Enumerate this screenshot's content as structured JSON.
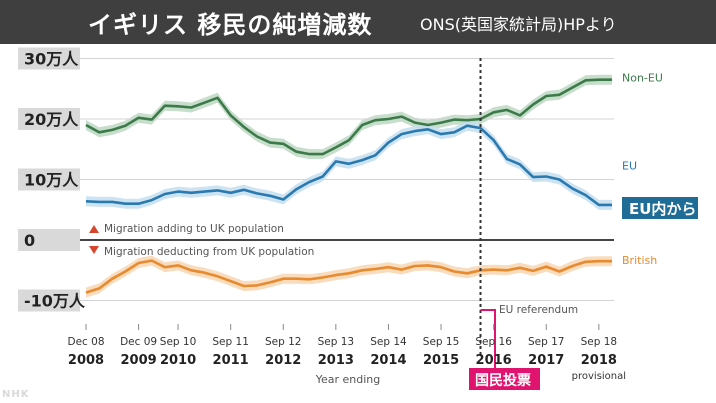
{
  "header": {
    "title": "イギリス  移民の純増減数",
    "source": "ONS(英国家統計局)HPより"
  },
  "watermark": "NHK",
  "chart_data": {
    "type": "line",
    "title": "イギリス  移民の純増減数",
    "xlabel": "Year ending",
    "ylabel": "",
    "ylim": [
      -13,
      33
    ],
    "grid": true,
    "x": [
      2008.0,
      2008.25,
      2008.5,
      2008.75,
      2009.0,
      2009.25,
      2009.5,
      2009.75,
      2010.0,
      2010.25,
      2010.5,
      2010.75,
      2011.0,
      2011.25,
      2011.5,
      2011.75,
      2012.0,
      2012.25,
      2012.5,
      2012.75,
      2013.0,
      2013.25,
      2013.5,
      2013.75,
      2014.0,
      2014.25,
      2014.5,
      2014.75,
      2015.0,
      2015.25,
      2015.5,
      2015.75,
      2016.0,
      2016.25,
      2016.5,
      2016.75,
      2017.0,
      2017.25,
      2017.5,
      2017.75,
      2018.0
    ],
    "y_ticks": [
      {
        "value": 30,
        "label": "30万人"
      },
      {
        "value": 20,
        "label": "20万人"
      },
      {
        "value": 10,
        "label": "10万人"
      },
      {
        "value": 0,
        "label": "0"
      },
      {
        "value": -10,
        "label": "-10万人"
      }
    ],
    "x_ticks": [
      {
        "value": 2008.0,
        "month": "Dec 08",
        "year": "2008"
      },
      {
        "value": 2009.0,
        "month": "Dec 09",
        "year": "2009"
      },
      {
        "value": 2009.75,
        "month": "Sep 10",
        "year": "2010"
      },
      {
        "value": 2010.75,
        "month": "Sep 11",
        "year": "2011"
      },
      {
        "value": 2011.75,
        "month": "Sep 12",
        "year": "2012"
      },
      {
        "value": 2012.75,
        "month": "Sep 13",
        "year": "2013"
      },
      {
        "value": 2013.75,
        "month": "Sep 14",
        "year": "2014"
      },
      {
        "value": 2014.75,
        "month": "Sep 15",
        "year": "2015"
      },
      {
        "value": 2015.75,
        "month": "Sep 16",
        "year": "2016"
      },
      {
        "value": 2016.75,
        "month": "Sep 17",
        "year": "2017"
      },
      {
        "value": 2017.75,
        "month": "Sep 18",
        "year": "2018",
        "note": "provisional"
      }
    ],
    "series": [
      {
        "name": "Non-EU",
        "color": "#3d7a4a",
        "band": "#bcd8c2",
        "values": [
          19.0,
          17.8,
          18.2,
          18.9,
          20.2,
          19.9,
          22.2,
          22.1,
          21.9,
          22.7,
          23.5,
          20.6,
          18.7,
          17.1,
          16.1,
          15.9,
          14.6,
          14.2,
          14.2,
          15.3,
          16.5,
          19.0,
          19.8,
          20.0,
          20.4,
          19.4,
          19.0,
          19.4,
          19.9,
          19.8,
          20.0,
          21.1,
          21.5,
          20.6,
          22.4,
          23.8,
          24.0,
          25.2,
          26.4,
          26.5,
          26.5
        ]
      },
      {
        "name": "EU",
        "color": "#2a7ab0",
        "band": "#c4def0",
        "values": [
          6.4,
          6.3,
          6.3,
          6.0,
          6.0,
          6.6,
          7.6,
          8.0,
          7.8,
          8.0,
          8.2,
          7.8,
          8.3,
          7.7,
          7.3,
          6.7,
          8.4,
          9.6,
          10.5,
          13.0,
          12.6,
          13.2,
          14.0,
          16.1,
          17.5,
          18.0,
          18.3,
          17.5,
          17.8,
          18.9,
          18.5,
          16.5,
          13.4,
          12.5,
          10.4,
          10.5,
          10.0,
          8.5,
          7.4,
          5.8,
          5.8
        ]
      },
      {
        "name": "British",
        "color": "#e88a2e",
        "band": "#f7d6b2",
        "values": [
          -8.7,
          -8.0,
          -6.4,
          -5.2,
          -3.8,
          -3.4,
          -4.5,
          -4.2,
          -5.0,
          -5.4,
          -6.0,
          -6.8,
          -7.6,
          -7.5,
          -7.0,
          -6.4,
          -6.4,
          -6.5,
          -6.2,
          -5.8,
          -5.5,
          -5.0,
          -4.8,
          -4.5,
          -4.9,
          -4.3,
          -4.2,
          -4.5,
          -5.2,
          -5.5,
          -5.0,
          -4.9,
          -5.0,
          -4.6,
          -5.1,
          -4.4,
          -5.2,
          -4.3,
          -3.6,
          -3.5,
          -3.5
        ]
      }
    ],
    "annotations": {
      "adding": "Migration adding to UK population",
      "deducting": "Migration deducting from UK population",
      "referendum": "EU referendum",
      "referendum_x": 2015.5,
      "referendum_jp": "国民投票",
      "eu_callout": "EU内から"
    },
    "colors": {
      "positive_marker": "#d7452e",
      "negative_marker": "#d7452e",
      "callout_eu_bg": "#1f6d97",
      "callout_ref_bg": "#e0136e"
    }
  }
}
